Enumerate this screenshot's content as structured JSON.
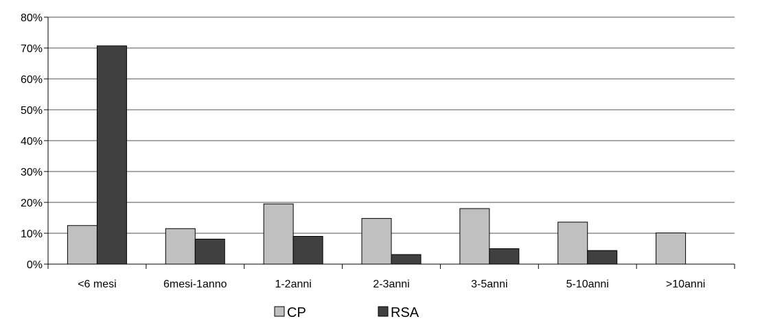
{
  "chart_data": {
    "type": "bar",
    "categories": [
      "<6 mesi",
      "6mesi-1anno",
      "1-2anni",
      "2-3anni",
      "3-5anni",
      "5-10anni",
      ">10anni"
    ],
    "series": [
      {
        "name": "CP",
        "color": "#c0c0c0",
        "values": [
          12.5,
          11.5,
          19.5,
          14.8,
          18.0,
          13.6,
          10.1
        ]
      },
      {
        "name": "RSA",
        "color": "#404040",
        "values": [
          70.7,
          8.1,
          9.0,
          3.1,
          5.0,
          4.4,
          0
        ]
      }
    ],
    "ylim": [
      0,
      80
    ],
    "yticks": [
      "0%",
      "10%",
      "20%",
      "30%",
      "40%",
      "50%",
      "60%",
      "70%",
      "80%"
    ],
    "grid": true,
    "legend_position": "bottom"
  }
}
